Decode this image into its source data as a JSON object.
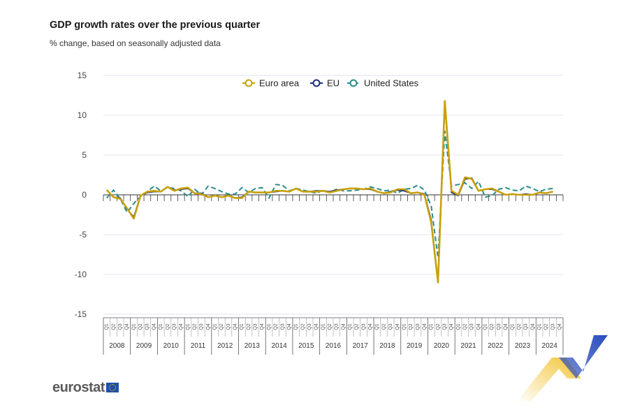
{
  "header": {
    "title": "GDP growth rates over the previous quarter",
    "subtitle": "% change, based on seasonally adjusted data"
  },
  "brand": {
    "logo_text": "eurostat"
  },
  "colors": {
    "euro_area": "#c9a10c",
    "eu": "#1c2f7a",
    "us": "#2a8c8c",
    "grid": "#e3e6ee",
    "deco_yellow": "#f2c230",
    "deco_blue": "#2a4dbd"
  },
  "chart_data": {
    "type": "line",
    "title": "GDP growth rates over the previous quarter",
    "subtitle": "% change, based on seasonally adjusted data",
    "ylim": [
      -15,
      15
    ],
    "yticks": [
      -15,
      -10,
      -5,
      0,
      5,
      10,
      15
    ],
    "legend_position": "top-center",
    "grid": true,
    "quarter_labels": [
      "Q1",
      "Q2",
      "Q3",
      "Q4"
    ],
    "years": [
      "2008",
      "2009",
      "2010",
      "2011",
      "2012",
      "2013",
      "2014",
      "2015",
      "2016",
      "2017",
      "2018",
      "2019",
      "2020",
      "2021",
      "2022",
      "2023",
      "2024"
    ],
    "series": [
      {
        "name": "Euro area",
        "color": "#c9a10c",
        "values": [
          0.6,
          -0.3,
          -0.5,
          -1.7,
          -3.0,
          -0.1,
          0.4,
          0.5,
          0.4,
          1.0,
          0.5,
          0.8,
          0.9,
          0.2,
          0.1,
          -0.3,
          -0.1,
          -0.3,
          -0.1,
          -0.4,
          -0.4,
          0.4,
          0.3,
          0.3,
          0.3,
          0.5,
          0.5,
          0.4,
          0.8,
          0.4,
          0.4,
          0.4,
          0.5,
          0.3,
          0.5,
          0.7,
          0.8,
          0.8,
          0.7,
          0.8,
          0.4,
          0.2,
          0.3,
          0.7,
          0.7,
          0.2,
          0.3,
          0.0,
          -3.5,
          -11.0,
          11.8,
          0.5,
          0.0,
          2.2,
          2.0,
          0.5,
          0.7,
          0.8,
          0.4,
          0.0,
          0.1,
          0.0,
          0.0,
          0.0,
          0.3,
          0.2,
          0.4
        ]
      },
      {
        "name": "EU",
        "color": "#1c2f7a",
        "values": [
          0.6,
          -0.3,
          -0.4,
          -1.8,
          -2.8,
          -0.1,
          0.3,
          0.4,
          0.4,
          1.0,
          0.6,
          0.7,
          0.8,
          0.2,
          0.2,
          -0.3,
          -0.1,
          -0.3,
          -0.1,
          -0.4,
          -0.3,
          0.4,
          0.3,
          0.3,
          0.3,
          0.4,
          0.5,
          0.4,
          0.8,
          0.4,
          0.4,
          0.5,
          0.5,
          0.4,
          0.6,
          0.7,
          0.8,
          0.8,
          0.7,
          0.7,
          0.4,
          0.2,
          0.4,
          0.6,
          0.5,
          0.2,
          0.3,
          0.1,
          -3.2,
          -11.0,
          11.5,
          0.3,
          -0.1,
          2.0,
          2.1,
          0.5,
          0.7,
          0.7,
          0.4,
          0.0,
          0.1,
          0.0,
          0.1,
          0.0,
          0.3,
          0.2,
          0.4
        ]
      },
      {
        "name": "United States",
        "color": "#2a8c8c",
        "values": [
          -0.4,
          0.6,
          -0.5,
          -2.2,
          -1.1,
          -0.2,
          0.4,
          1.1,
          0.5,
          0.9,
          0.8,
          0.5,
          -0.2,
          0.7,
          -0.0,
          1.1,
          0.8,
          0.4,
          0.1,
          0.1,
          0.9,
          0.3,
          0.8,
          0.9,
          -0.4,
          1.3,
          1.2,
          0.5,
          0.8,
          0.6,
          0.4,
          0.2,
          0.6,
          0.3,
          0.7,
          0.5,
          0.5,
          0.6,
          0.7,
          1.0,
          0.8,
          0.5,
          0.6,
          0.2,
          0.7,
          0.8,
          1.2,
          0.6,
          -1.4,
          -7.9,
          8.0,
          1.1,
          1.3,
          1.5,
          0.8,
          1.7,
          -0.3,
          -0.1,
          0.7,
          0.9,
          0.6,
          0.5,
          1.1,
          0.8,
          0.4,
          0.7,
          0.8
        ]
      }
    ]
  }
}
